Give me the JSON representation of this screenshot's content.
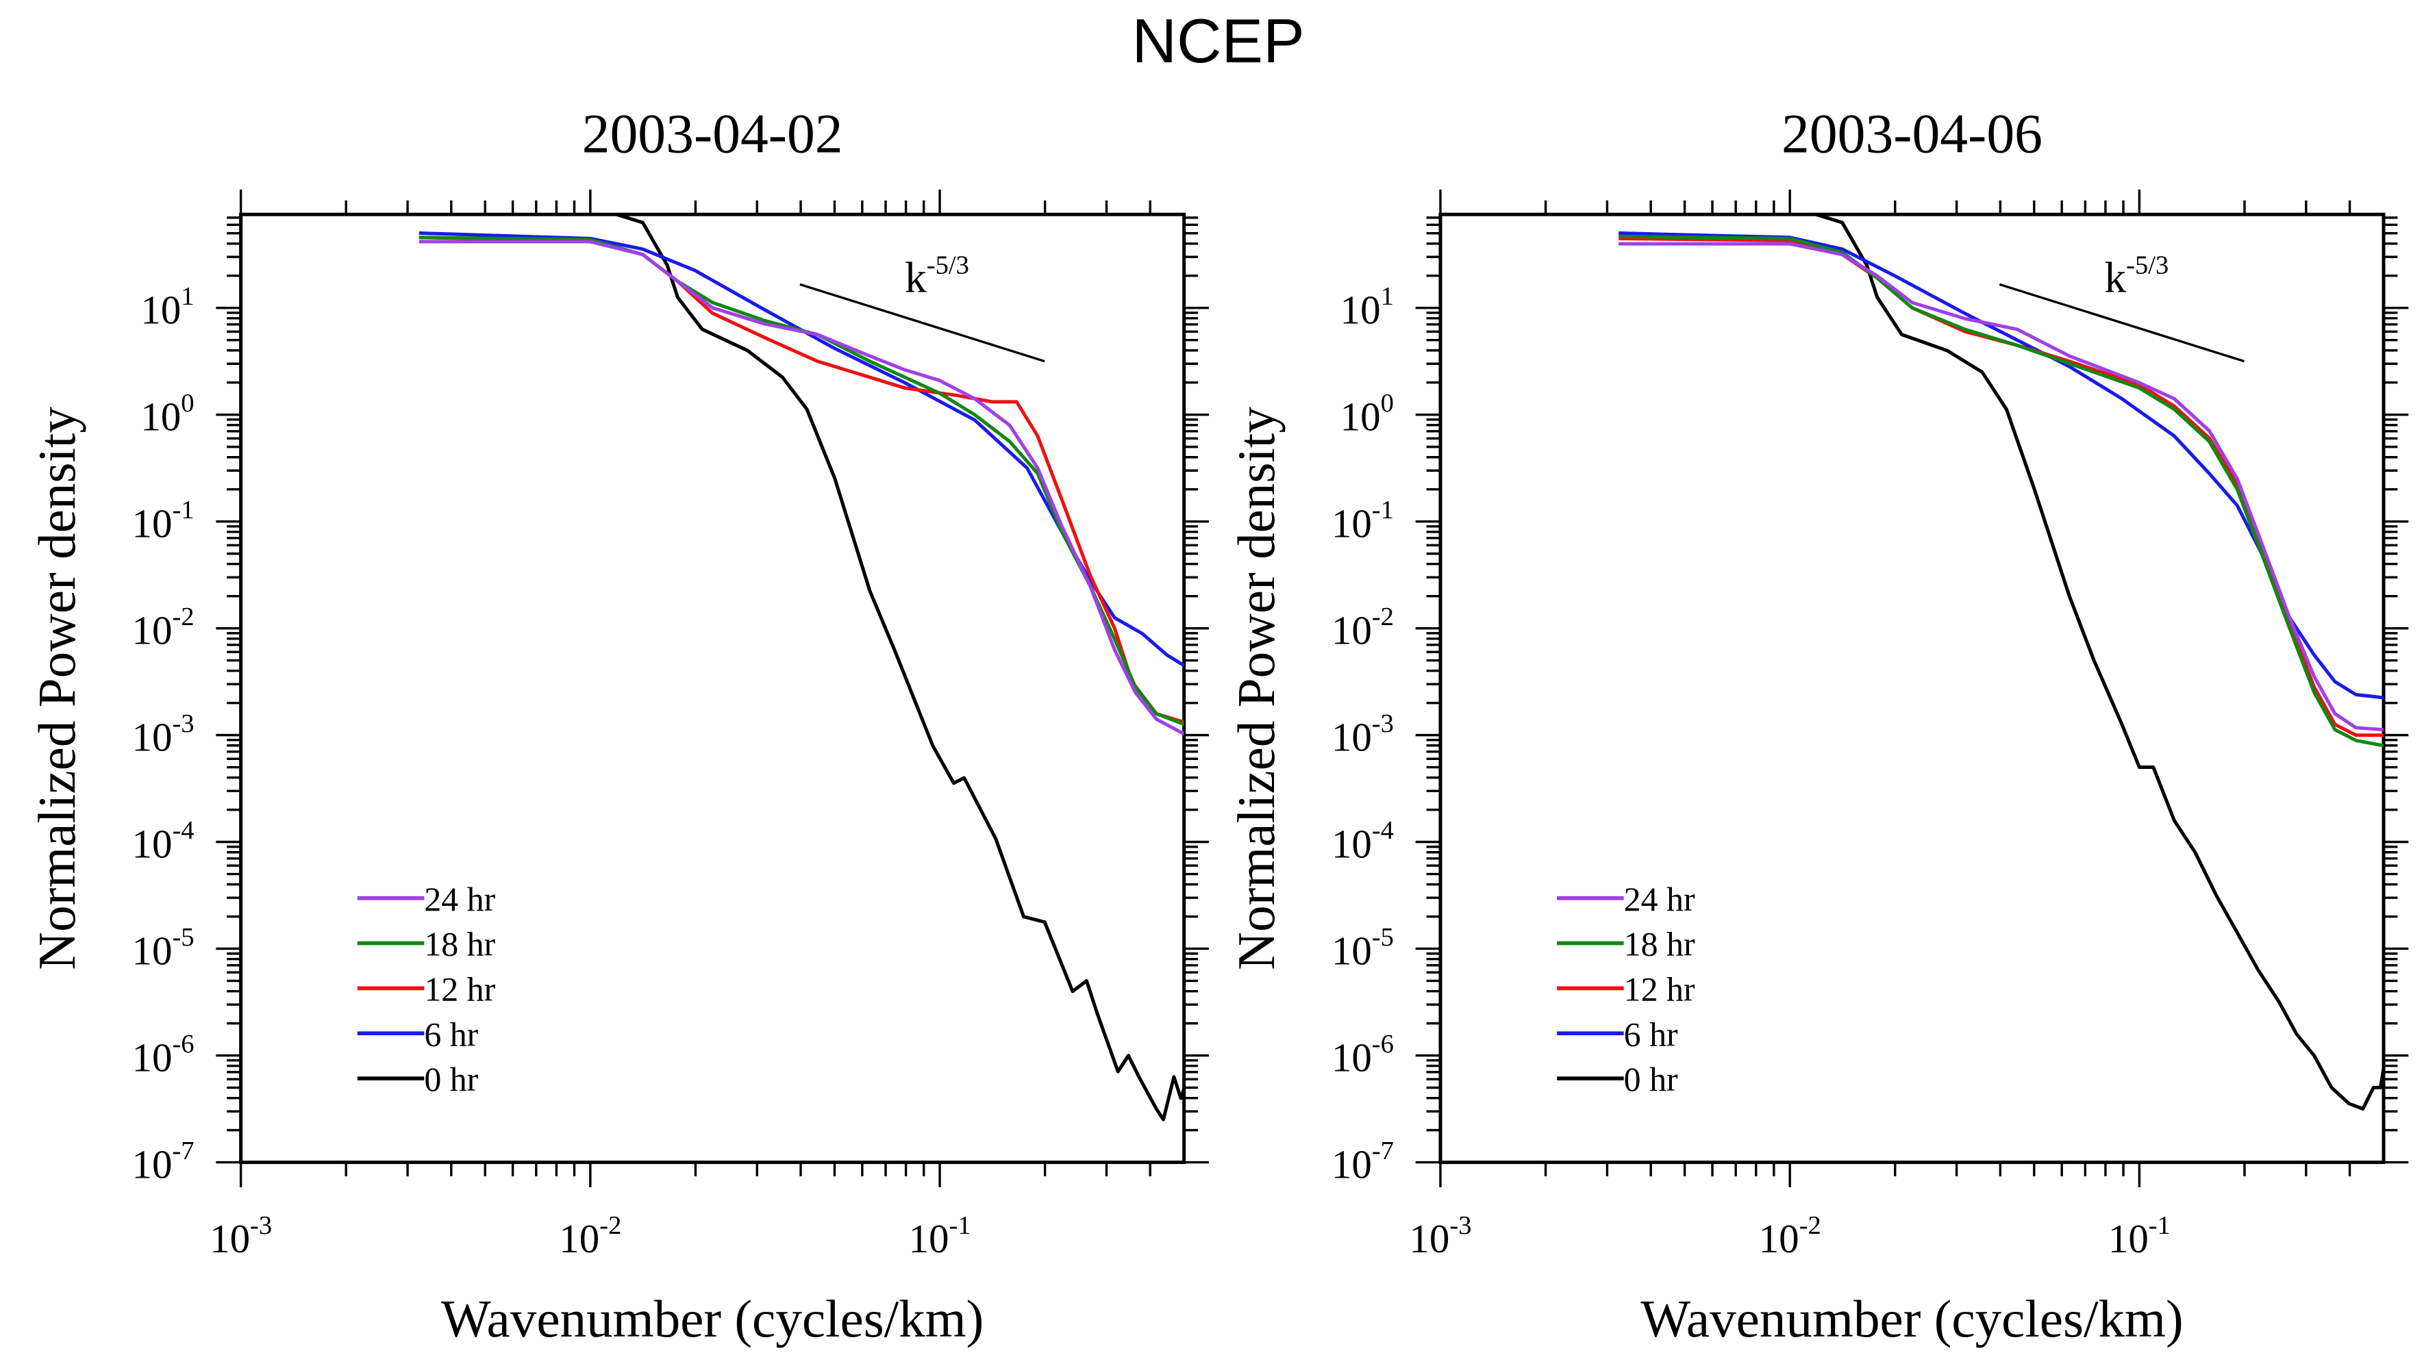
{
  "title": "NCEP",
  "chart_data": [
    {
      "type": "line",
      "title": "2003-04-02",
      "xlabel": "Wavenumber (cycles/km)",
      "ylabel": "Normalized Power density",
      "xscale": "log",
      "yscale": "log",
      "xlim": [
        0.001,
        0.5
      ],
      "ylim": [
        1e-07,
        75
      ],
      "xtick_exponents": [
        -3,
        -2,
        -1
      ],
      "ytick_exponents": [
        -7,
        -6,
        -5,
        -4,
        -3,
        -2,
        -1,
        0,
        1
      ],
      "grid": false,
      "legend_placement": "bottom-left",
      "annotation": {
        "text": "k",
        "exponent": "-5/3",
        "slope_line": [
          [
            -1.4,
            1.22
          ],
          [
            -0.7,
            0.5
          ]
        ]
      },
      "note": "series points are [log10(wavenumber), log10(power)]",
      "series": [
        {
          "name": "24 hr",
          "color": "#a040e8",
          "points": [
            [
              -2.49,
              1.62
            ],
            [
              -2.0,
              1.62
            ],
            [
              -1.85,
              1.5
            ],
            [
              -1.75,
              1.25
            ],
            [
              -1.65,
              1.0
            ],
            [
              -1.5,
              0.85
            ],
            [
              -1.35,
              0.75
            ],
            [
              -1.2,
              0.55
            ],
            [
              -1.1,
              0.42
            ],
            [
              -1.0,
              0.32
            ],
            [
              -0.9,
              0.15
            ],
            [
              -0.8,
              -0.1
            ],
            [
              -0.72,
              -0.5
            ],
            [
              -0.65,
              -1.05
            ],
            [
              -0.57,
              -1.6
            ],
            [
              -0.5,
              -2.2
            ],
            [
              -0.44,
              -2.6
            ],
            [
              -0.38,
              -2.85
            ],
            [
              -0.3,
              -2.99
            ]
          ]
        },
        {
          "name": "18 hr",
          "color": "#118811",
          "points": [
            [
              -2.49,
              1.66
            ],
            [
              -2.0,
              1.64
            ],
            [
              -1.85,
              1.5
            ],
            [
              -1.75,
              1.25
            ],
            [
              -1.65,
              1.05
            ],
            [
              -1.5,
              0.88
            ],
            [
              -1.35,
              0.75
            ],
            [
              -1.2,
              0.5
            ],
            [
              -1.1,
              0.35
            ],
            [
              -1.0,
              0.2
            ],
            [
              -0.9,
              0.0
            ],
            [
              -0.8,
              -0.25
            ],
            [
              -0.72,
              -0.55
            ],
            [
              -0.65,
              -1.1
            ],
            [
              -0.57,
              -1.6
            ],
            [
              -0.5,
              -2.1
            ],
            [
              -0.44,
              -2.55
            ],
            [
              -0.38,
              -2.8
            ],
            [
              -0.3,
              -2.9
            ]
          ]
        },
        {
          "name": "12 hr",
          "color": "#ee1111",
          "points": [
            [
              -2.49,
              1.66
            ],
            [
              -2.0,
              1.63
            ],
            [
              -1.85,
              1.5
            ],
            [
              -1.75,
              1.25
            ],
            [
              -1.65,
              0.95
            ],
            [
              -1.5,
              0.72
            ],
            [
              -1.35,
              0.5
            ],
            [
              -1.2,
              0.35
            ],
            [
              -1.1,
              0.25
            ],
            [
              -0.95,
              0.18
            ],
            [
              -0.85,
              0.12
            ],
            [
              -0.78,
              0.12
            ],
            [
              -0.72,
              -0.2
            ],
            [
              -0.65,
              -0.8
            ],
            [
              -0.57,
              -1.5
            ],
            [
              -0.5,
              -2.0
            ],
            [
              -0.45,
              -2.5
            ],
            [
              -0.38,
              -2.8
            ],
            [
              -0.3,
              -2.88
            ]
          ]
        },
        {
          "name": "6 hr",
          "color": "#1a1aee",
          "points": [
            [
              -2.49,
              1.7
            ],
            [
              -2.0,
              1.65
            ],
            [
              -1.85,
              1.55
            ],
            [
              -1.7,
              1.35
            ],
            [
              -1.5,
              0.98
            ],
            [
              -1.3,
              0.62
            ],
            [
              -1.1,
              0.3
            ],
            [
              -0.9,
              -0.05
            ],
            [
              -0.75,
              -0.5
            ],
            [
              -0.65,
              -1.1
            ],
            [
              -0.57,
              -1.55
            ],
            [
              -0.5,
              -1.9
            ],
            [
              -0.42,
              -2.05
            ],
            [
              -0.35,
              -2.25
            ],
            [
              -0.3,
              -2.35
            ]
          ]
        },
        {
          "name": "0 hr",
          "color": "#000000",
          "points": [
            [
              -2.2,
              1.95
            ],
            [
              -1.95,
              1.9
            ],
            [
              -1.85,
              1.8
            ],
            [
              -1.78,
              1.4
            ],
            [
              -1.75,
              1.1
            ],
            [
              -1.68,
              0.8
            ],
            [
              -1.55,
              0.6
            ],
            [
              -1.45,
              0.35
            ],
            [
              -1.38,
              0.05
            ],
            [
              -1.3,
              -0.6
            ],
            [
              -1.2,
              -1.65
            ],
            [
              -1.13,
              -2.2
            ],
            [
              -1.02,
              -3.1
            ],
            [
              -0.96,
              -3.45
            ],
            [
              -0.93,
              -3.4
            ],
            [
              -0.84,
              -3.97
            ],
            [
              -0.76,
              -4.7
            ],
            [
              -0.7,
              -4.75
            ],
            [
              -0.62,
              -5.4
            ],
            [
              -0.58,
              -5.3
            ],
            [
              -0.55,
              -5.6
            ],
            [
              -0.49,
              -6.15
            ],
            [
              -0.46,
              -6.0
            ],
            [
              -0.43,
              -6.2
            ],
            [
              -0.38,
              -6.5
            ],
            [
              -0.36,
              -6.6
            ],
            [
              -0.33,
              -6.2
            ],
            [
              -0.31,
              -6.4
            ],
            [
              -0.3,
              -6.3
            ]
          ]
        }
      ]
    },
    {
      "type": "line",
      "title": "2003-04-06",
      "xlabel": "Wavenumber (cycles/km)",
      "ylabel": "Normalized Power density",
      "xscale": "log",
      "yscale": "log",
      "xlim": [
        0.001,
        0.5
      ],
      "ylim": [
        1e-07,
        75
      ],
      "xtick_exponents": [
        -3,
        -2,
        -1
      ],
      "ytick_exponents": [
        -7,
        -6,
        -5,
        -4,
        -3,
        -2,
        -1,
        0,
        1
      ],
      "grid": false,
      "legend_placement": "bottom-left",
      "annotation": {
        "text": "k",
        "exponent": "-5/3",
        "slope_line": [
          [
            -1.4,
            1.22
          ],
          [
            -0.7,
            0.5
          ]
        ]
      },
      "note": "series points are [log10(wavenumber), log10(power)]",
      "series": [
        {
          "name": "24 hr",
          "color": "#a040e8",
          "points": [
            [
              -2.49,
              1.6
            ],
            [
              -2.0,
              1.6
            ],
            [
              -1.85,
              1.5
            ],
            [
              -1.75,
              1.3
            ],
            [
              -1.65,
              1.05
            ],
            [
              -1.5,
              0.9
            ],
            [
              -1.35,
              0.8
            ],
            [
              -1.2,
              0.55
            ],
            [
              -1.0,
              0.3
            ],
            [
              -0.9,
              0.15
            ],
            [
              -0.8,
              -0.15
            ],
            [
              -0.72,
              -0.6
            ],
            [
              -0.65,
              -1.2
            ],
            [
              -0.57,
              -1.9
            ],
            [
              -0.5,
              -2.45
            ],
            [
              -0.44,
              -2.8
            ],
            [
              -0.38,
              -2.93
            ],
            [
              -0.3,
              -2.95
            ]
          ]
        },
        {
          "name": "18 hr",
          "color": "#118811",
          "points": [
            [
              -2.49,
              1.67
            ],
            [
              -2.0,
              1.65
            ],
            [
              -1.85,
              1.52
            ],
            [
              -1.75,
              1.28
            ],
            [
              -1.65,
              1.0
            ],
            [
              -1.5,
              0.8
            ],
            [
              -1.35,
              0.65
            ],
            [
              -1.2,
              0.48
            ],
            [
              -1.0,
              0.25
            ],
            [
              -0.9,
              0.05
            ],
            [
              -0.8,
              -0.25
            ],
            [
              -0.72,
              -0.7
            ],
            [
              -0.65,
              -1.3
            ],
            [
              -0.57,
              -2.0
            ],
            [
              -0.5,
              -2.6
            ],
            [
              -0.44,
              -2.95
            ],
            [
              -0.38,
              -3.05
            ],
            [
              -0.3,
              -3.1
            ]
          ]
        },
        {
          "name": "12 hr",
          "color": "#ee1111",
          "points": [
            [
              -2.49,
              1.65
            ],
            [
              -2.0,
              1.63
            ],
            [
              -1.85,
              1.5
            ],
            [
              -1.75,
              1.28
            ],
            [
              -1.65,
              1.0
            ],
            [
              -1.5,
              0.78
            ],
            [
              -1.35,
              0.65
            ],
            [
              -1.2,
              0.5
            ],
            [
              -1.0,
              0.28
            ],
            [
              -0.9,
              0.08
            ],
            [
              -0.8,
              -0.22
            ],
            [
              -0.72,
              -0.65
            ],
            [
              -0.65,
              -1.25
            ],
            [
              -0.57,
              -1.95
            ],
            [
              -0.5,
              -2.55
            ],
            [
              -0.44,
              -2.9
            ],
            [
              -0.38,
              -3.0
            ],
            [
              -0.3,
              -3.0
            ]
          ]
        },
        {
          "name": "6 hr",
          "color": "#1a1aee",
          "points": [
            [
              -2.49,
              1.7
            ],
            [
              -2.0,
              1.66
            ],
            [
              -1.85,
              1.55
            ],
            [
              -1.7,
              1.3
            ],
            [
              -1.5,
              0.95
            ],
            [
              -1.35,
              0.7
            ],
            [
              -1.2,
              0.45
            ],
            [
              -1.05,
              0.15
            ],
            [
              -0.9,
              -0.2
            ],
            [
              -0.8,
              -0.55
            ],
            [
              -0.72,
              -0.85
            ],
            [
              -0.65,
              -1.3
            ],
            [
              -0.57,
              -1.9
            ],
            [
              -0.5,
              -2.25
            ],
            [
              -0.44,
              -2.5
            ],
            [
              -0.38,
              -2.62
            ],
            [
              -0.3,
              -2.65
            ]
          ]
        },
        {
          "name": "0 hr",
          "color": "#000000",
          "points": [
            [
              -2.2,
              1.95
            ],
            [
              -1.95,
              1.9
            ],
            [
              -1.85,
              1.8
            ],
            [
              -1.78,
              1.4
            ],
            [
              -1.75,
              1.1
            ],
            [
              -1.68,
              0.75
            ],
            [
              -1.55,
              0.6
            ],
            [
              -1.45,
              0.4
            ],
            [
              -1.38,
              0.05
            ],
            [
              -1.3,
              -0.7
            ],
            [
              -1.2,
              -1.7
            ],
            [
              -1.13,
              -2.3
            ],
            [
              -1.05,
              -2.9
            ],
            [
              -1.0,
              -3.3
            ],
            [
              -0.96,
              -3.3
            ],
            [
              -0.9,
              -3.8
            ],
            [
              -0.84,
              -4.1
            ],
            [
              -0.78,
              -4.5
            ],
            [
              -0.72,
              -4.85
            ],
            [
              -0.66,
              -5.2
            ],
            [
              -0.6,
              -5.5
            ],
            [
              -0.55,
              -5.8
            ],
            [
              -0.5,
              -6.0
            ],
            [
              -0.45,
              -6.3
            ],
            [
              -0.4,
              -6.45
            ],
            [
              -0.36,
              -6.5
            ],
            [
              -0.33,
              -6.3
            ],
            [
              -0.31,
              -6.3
            ],
            [
              -0.3,
              -6.1
            ]
          ]
        }
      ]
    }
  ]
}
